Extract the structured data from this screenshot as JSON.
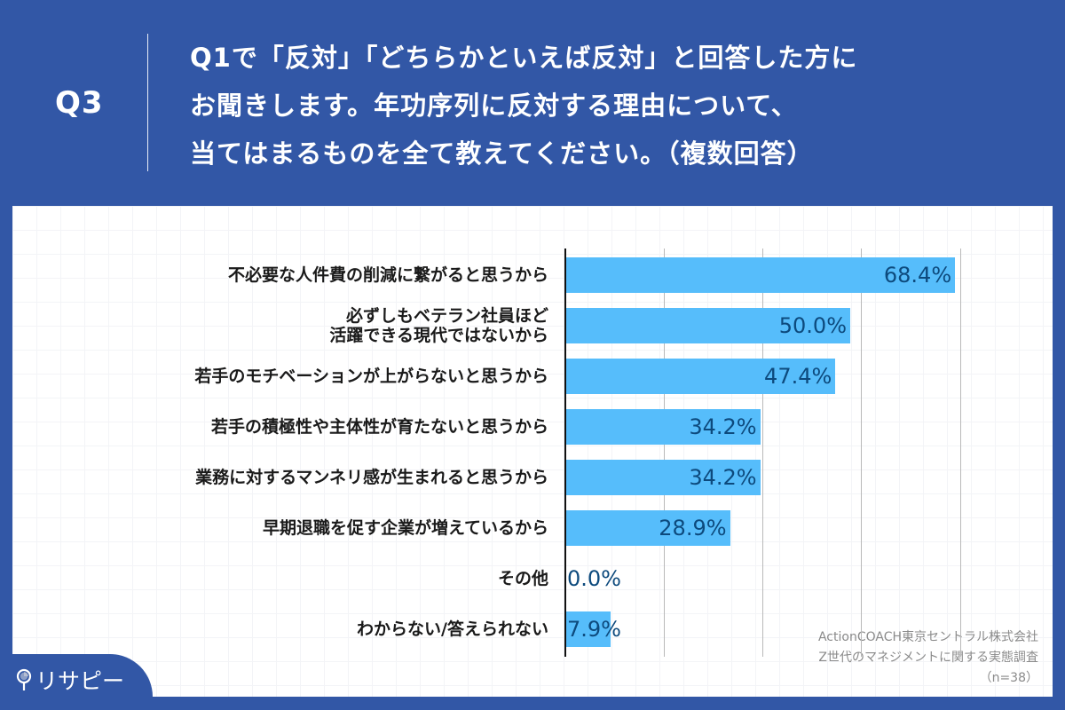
{
  "header": {
    "question_id": "Q3",
    "question_lines": [
      "Q1で「反対」「どちらかといえば反対」と回答した方に",
      "お聞きします。年功序列に反対する理由について、",
      "当てはまるものを全て教えてください。（複数回答）"
    ]
  },
  "colors": {
    "background": "#3257a6",
    "bar": "#56bdfb",
    "value_text": "#0d4a7d",
    "panel": "#ffffff"
  },
  "chart_data": {
    "type": "bar",
    "orientation": "horizontal",
    "title": "Q1で「反対」「どちらかといえば反対」と回答した方にお聞きします。年功序列に反対する理由について、当てはまるものを全て教えてください。（複数回答）",
    "categories": [
      "不必要な人件費の削減に繋がると思うから",
      "必ずしもベテラン社員ほど活躍できる現代ではないから",
      "若手のモチベーションが上がらないと思うから",
      "若手の積極性や主体性が育たないと思うから",
      "業務に対するマンネリ感が生まれると思うから",
      "早期退職を促す企業が増えているから",
      "その他",
      "わからない/答えられない"
    ],
    "values": [
      68.4,
      50.0,
      47.4,
      34.2,
      34.2,
      28.9,
      0.0,
      7.9
    ],
    "value_labels": [
      "68.4%",
      "50.0%",
      "47.4%",
      "34.2%",
      "34.2%",
      "28.9%",
      "0.0%",
      "7.9%"
    ],
    "unit": "%",
    "xlabel": "",
    "ylabel": "",
    "grid": true,
    "legend": null,
    "n": 38
  },
  "rows": [
    {
      "label_lines": [
        "不必要な人件費の削減に繋がると思うから"
      ],
      "value": "68.4%"
    },
    {
      "label_lines": [
        "必ずしもベテラン社員ほど",
        "活躍できる現代ではないから"
      ],
      "value": "50.0%"
    },
    {
      "label_lines": [
        "若手のモチベーションが上がらないと思うから"
      ],
      "value": "47.4%"
    },
    {
      "label_lines": [
        "若手の積極性や主体性が育たないと思うから"
      ],
      "value": "34.2%"
    },
    {
      "label_lines": [
        "業務に対するマンネリ感が生まれると思うから"
      ],
      "value": "34.2%"
    },
    {
      "label_lines": [
        "早期退職を促す企業が増えているから"
      ],
      "value": "28.9%"
    },
    {
      "label_lines": [
        "その他"
      ],
      "value": "0.0%"
    },
    {
      "label_lines": [
        "わからない/答えられない"
      ],
      "value": "7.9%"
    }
  ],
  "source": {
    "lines": [
      "ActionCOACH東京セントラル株式会社",
      "Z世代のマネジメントに関する実態調査",
      "（n=38）"
    ]
  },
  "logo": {
    "text": "リサピー",
    "icon": "map-pin-icon"
  }
}
